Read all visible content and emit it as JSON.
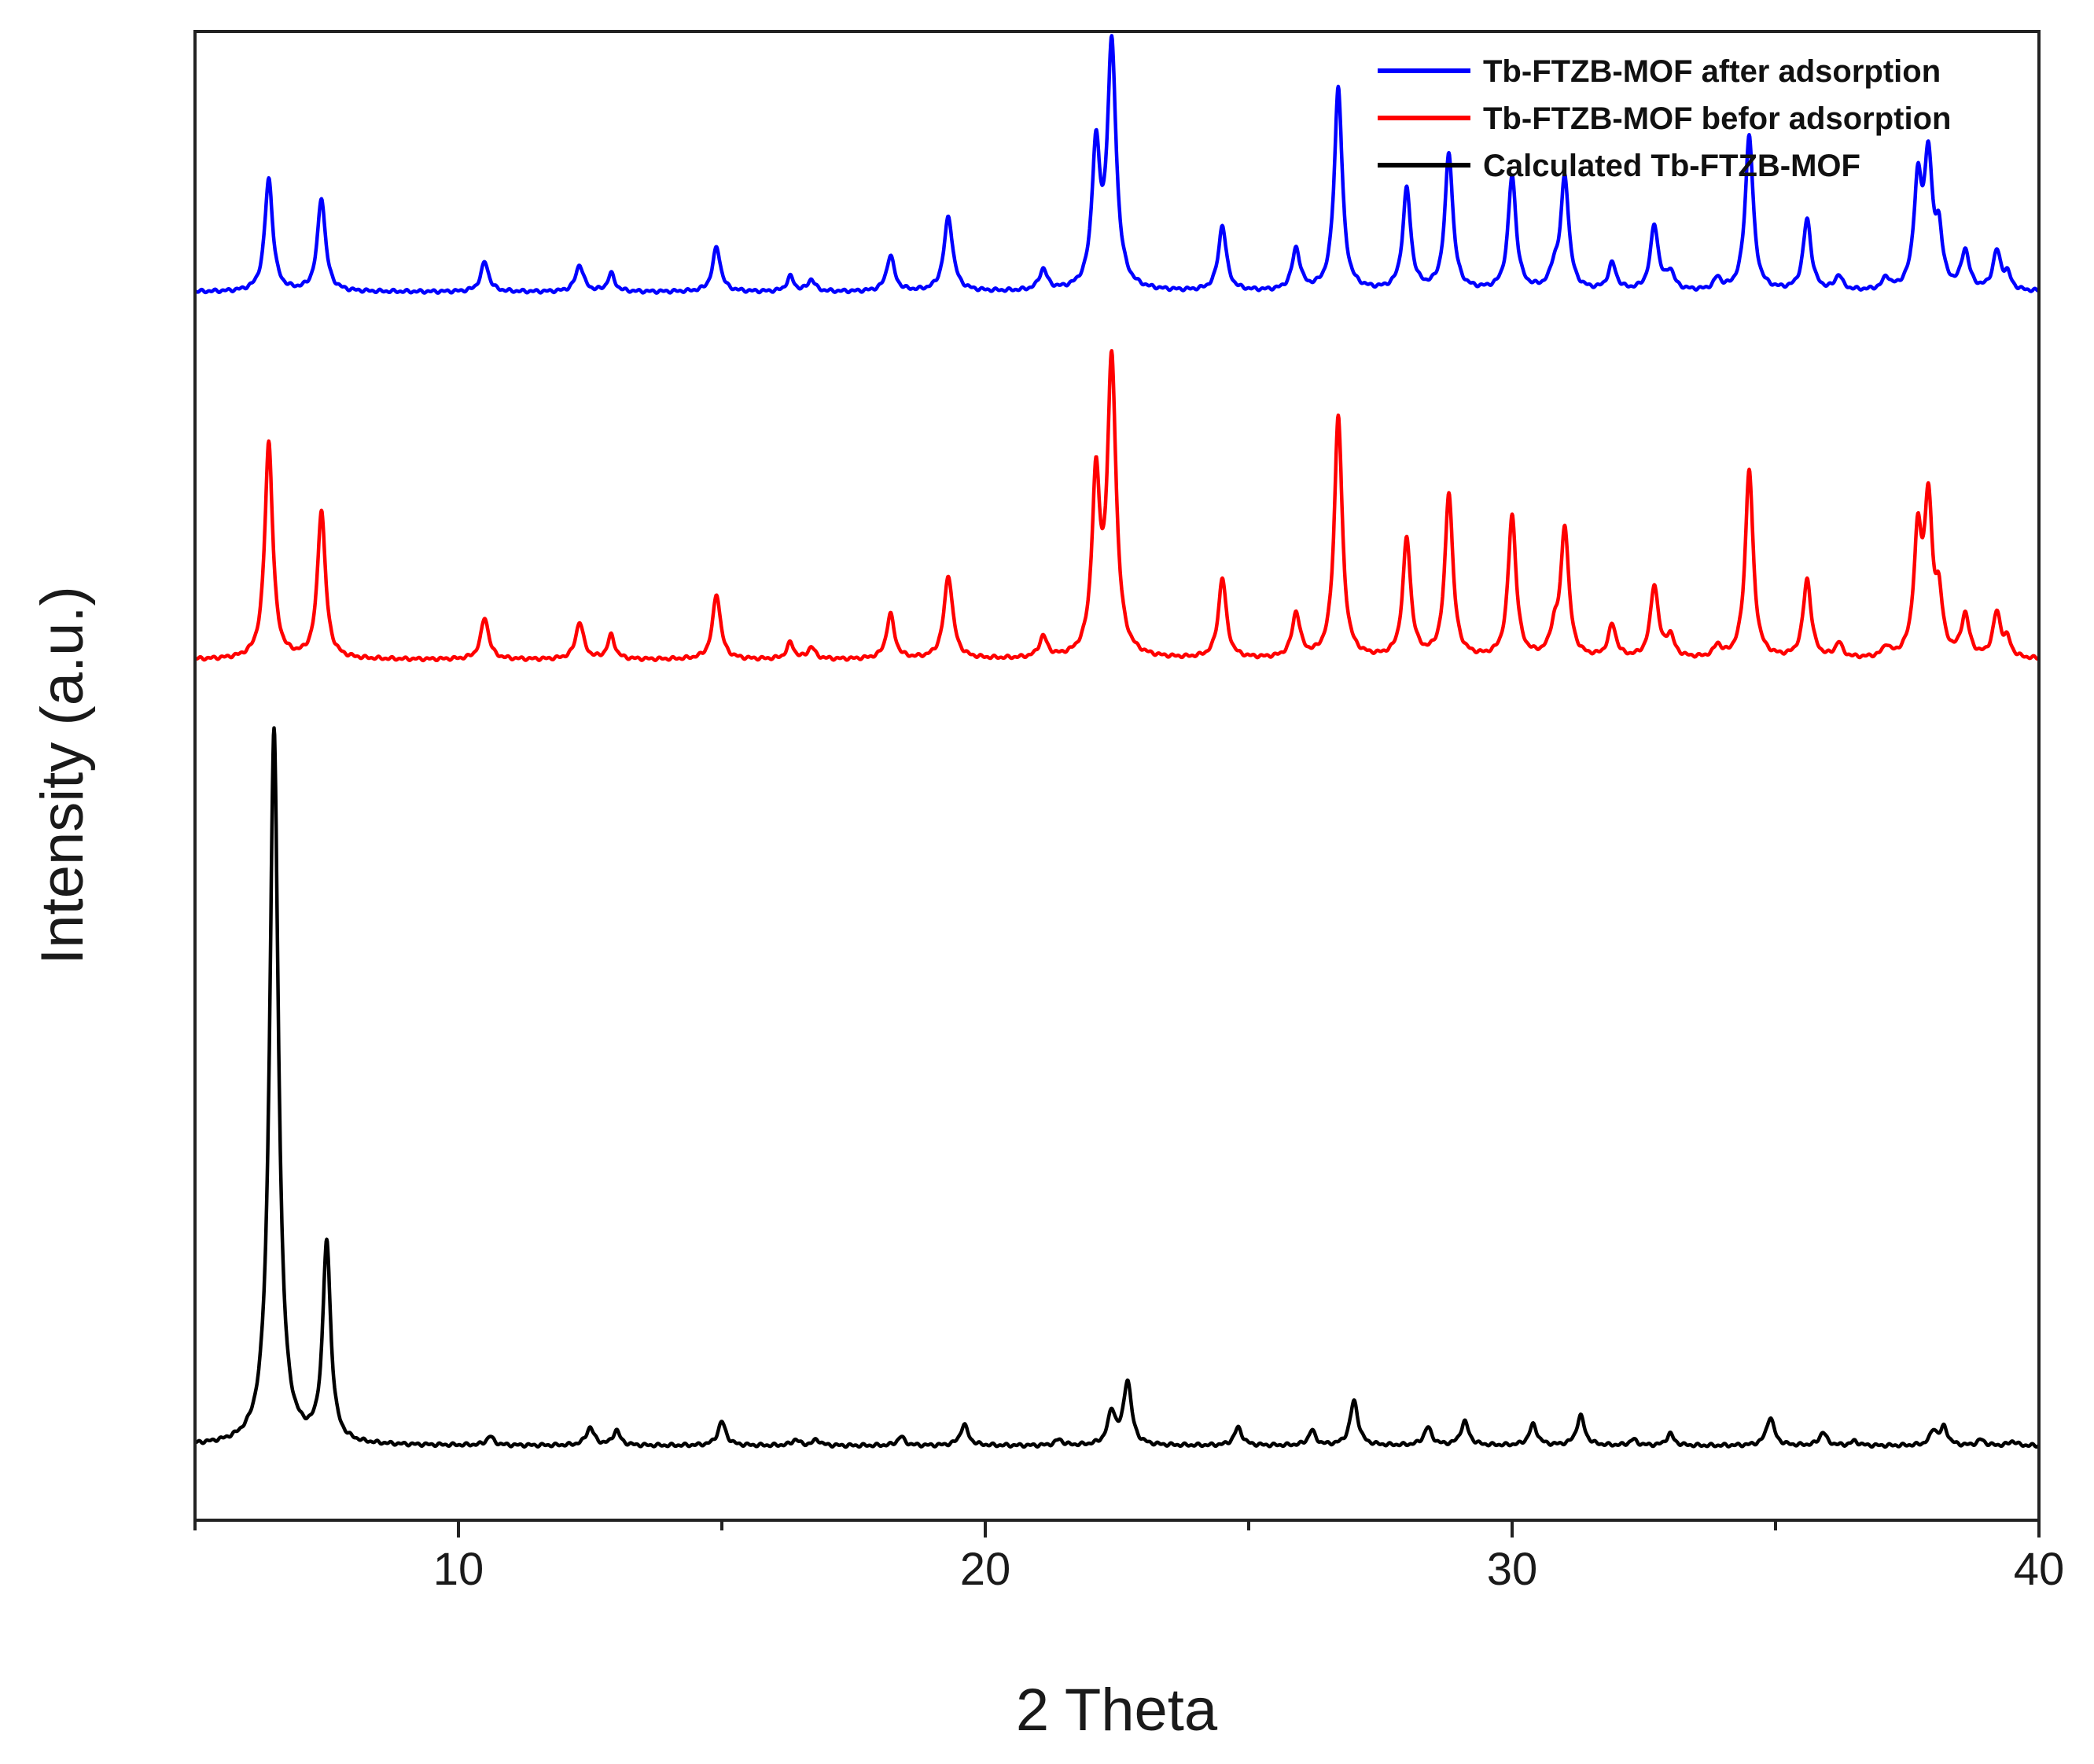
{
  "chart_data": {
    "type": "line",
    "title": "",
    "xlabel": "2 Theta",
    "ylabel": "Intensity (a.u.)",
    "xlim": [
      5,
      40
    ],
    "ylim": [
      0,
      100
    ],
    "x_ticks": [
      10,
      20,
      30,
      40
    ],
    "y_ticks": [],
    "grid": false,
    "legend_position": "top-right",
    "series": [
      {
        "name": "Tb-FTZB-MOF after adsorption",
        "color": "#0000ff",
        "baseline": 82.5,
        "peaks": [
          [
            6.4,
            7.6,
            0.09
          ],
          [
            7.4,
            6.3,
            0.09
          ],
          [
            10.5,
            2.0,
            0.09
          ],
          [
            12.3,
            1.8,
            0.09
          ],
          [
            12.9,
            1.2,
            0.08
          ],
          [
            14.9,
            3.0,
            0.09
          ],
          [
            16.3,
            1.0,
            0.08
          ],
          [
            16.7,
            0.8,
            0.08
          ],
          [
            18.2,
            2.4,
            0.09
          ],
          [
            19.3,
            5.0,
            0.1
          ],
          [
            21.1,
            1.4,
            0.09
          ],
          [
            22.1,
            9.2,
            0.09
          ],
          [
            22.4,
            16.3,
            0.1
          ],
          [
            24.5,
            4.4,
            0.09
          ],
          [
            25.9,
            2.8,
            0.09
          ],
          [
            26.7,
            13.7,
            0.09
          ],
          [
            28.0,
            6.8,
            0.09
          ],
          [
            28.8,
            9.2,
            0.09
          ],
          [
            30.0,
            7.7,
            0.09
          ],
          [
            30.8,
            1.2,
            0.09
          ],
          [
            31.0,
            7.6,
            0.09
          ],
          [
            31.9,
            1.8,
            0.09
          ],
          [
            32.7,
            4.4,
            0.09
          ],
          [
            33.0,
            1.2,
            0.09
          ],
          [
            33.9,
            0.8,
            0.08
          ],
          [
            34.5,
            10.5,
            0.09
          ],
          [
            35.6,
            4.8,
            0.09
          ],
          [
            36.2,
            1.0,
            0.08
          ],
          [
            37.1,
            0.8,
            0.08
          ],
          [
            37.7,
            6.9,
            0.09
          ],
          [
            37.9,
            8.5,
            0.09
          ],
          [
            38.1,
            3.5,
            0.08
          ],
          [
            38.6,
            2.6,
            0.09
          ],
          [
            39.2,
            2.6,
            0.09
          ],
          [
            39.4,
            1.0,
            0.08
          ]
        ]
      },
      {
        "name": "Tb-FTZB-MOF befor adsorption",
        "color": "#ff0000",
        "baseline": 57.8,
        "peaks": [
          [
            6.4,
            14.6,
            0.09
          ],
          [
            7.4,
            10.0,
            0.09
          ],
          [
            10.5,
            2.8,
            0.09
          ],
          [
            12.3,
            2.5,
            0.09
          ],
          [
            12.9,
            1.6,
            0.08
          ],
          [
            14.9,
            4.4,
            0.09
          ],
          [
            16.3,
            1.1,
            0.08
          ],
          [
            16.7,
            0.8,
            0.08
          ],
          [
            18.2,
            3.0,
            0.09
          ],
          [
            19.3,
            5.6,
            0.1
          ],
          [
            21.1,
            1.4,
            0.09
          ],
          [
            22.1,
            11.5,
            0.09
          ],
          [
            22.4,
            19.7,
            0.1
          ],
          [
            24.5,
            5.4,
            0.09
          ],
          [
            25.9,
            3.0,
            0.09
          ],
          [
            26.7,
            16.3,
            0.09
          ],
          [
            28.0,
            8.0,
            0.09
          ],
          [
            28.8,
            11.1,
            0.09
          ],
          [
            30.0,
            9.6,
            0.09
          ],
          [
            30.8,
            1.6,
            0.09
          ],
          [
            31.0,
            8.7,
            0.09
          ],
          [
            31.9,
            2.2,
            0.09
          ],
          [
            32.7,
            4.9,
            0.09
          ],
          [
            33.0,
            1.4,
            0.09
          ],
          [
            33.9,
            0.8,
            0.08
          ],
          [
            34.5,
            12.7,
            0.09
          ],
          [
            35.6,
            5.3,
            0.09
          ],
          [
            36.2,
            1.0,
            0.08
          ],
          [
            37.1,
            0.7,
            0.08
          ],
          [
            37.7,
            7.8,
            0.09
          ],
          [
            37.9,
            10.0,
            0.09
          ],
          [
            38.1,
            3.6,
            0.08
          ],
          [
            38.6,
            2.8,
            0.09
          ],
          [
            39.2,
            3.0,
            0.09
          ],
          [
            39.4,
            1.1,
            0.08
          ]
        ]
      },
      {
        "name": "Calculated Tb-FTZB-MOF",
        "color": "#000000",
        "baseline": 5.0,
        "peaks": [
          [
            6.5,
            48.0,
            0.1
          ],
          [
            7.5,
            13.4,
            0.09
          ],
          [
            10.6,
            0.6,
            0.08
          ],
          [
            12.5,
            1.2,
            0.09
          ],
          [
            13.0,
            1.0,
            0.08
          ],
          [
            15.0,
            1.6,
            0.09
          ],
          [
            16.4,
            0.4,
            0.08
          ],
          [
            16.8,
            0.4,
            0.08
          ],
          [
            18.4,
            0.6,
            0.08
          ],
          [
            19.6,
            1.4,
            0.09
          ],
          [
            21.4,
            0.4,
            0.08
          ],
          [
            22.4,
            2.2,
            0.09
          ],
          [
            22.7,
            4.3,
            0.09
          ],
          [
            24.8,
            1.2,
            0.09
          ],
          [
            26.2,
            1.0,
            0.08
          ],
          [
            27.0,
            3.0,
            0.09
          ],
          [
            28.4,
            1.2,
            0.09
          ],
          [
            29.1,
            1.6,
            0.09
          ],
          [
            30.4,
            1.4,
            0.09
          ],
          [
            31.3,
            2.0,
            0.09
          ],
          [
            32.3,
            0.4,
            0.08
          ],
          [
            33.0,
            0.8,
            0.08
          ],
          [
            34.9,
            1.9,
            0.09
          ],
          [
            35.9,
            0.9,
            0.08
          ],
          [
            36.5,
            0.3,
            0.08
          ],
          [
            38.0,
            1.0,
            0.08
          ],
          [
            38.2,
            1.2,
            0.08
          ],
          [
            38.9,
            0.4,
            0.08
          ],
          [
            39.5,
            0.3,
            0.08
          ]
        ]
      }
    ]
  }
}
